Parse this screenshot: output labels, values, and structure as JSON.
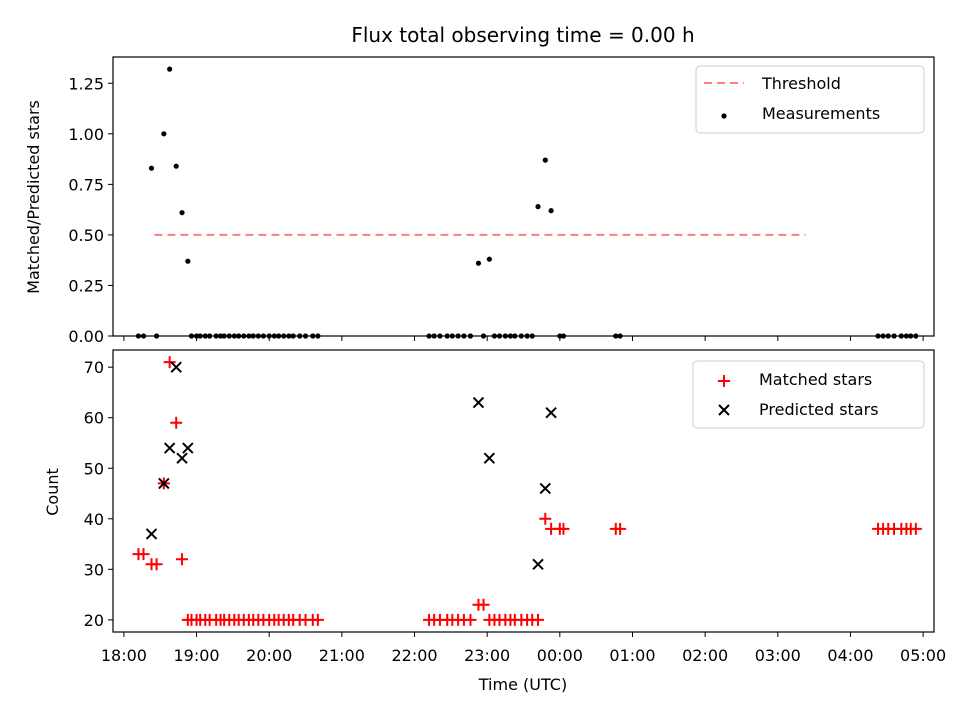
{
  "chart_data": {
    "title": "Flux total observing time = 0.00 h",
    "xlabel": "Time (UTC)",
    "x_ticks": [
      {
        "h": 18,
        "label": "18:00"
      },
      {
        "h": 19,
        "label": "19:00"
      },
      {
        "h": 20,
        "label": "20:00"
      },
      {
        "h": 21,
        "label": "21:00"
      },
      {
        "h": 22,
        "label": "22:00"
      },
      {
        "h": 23,
        "label": "23:00"
      },
      {
        "h": 24,
        "label": "00:00"
      },
      {
        "h": 25,
        "label": "01:00"
      },
      {
        "h": 26,
        "label": "02:00"
      },
      {
        "h": 27,
        "label": "03:00"
      },
      {
        "h": 28,
        "label": "04:00"
      },
      {
        "h": 29,
        "label": "05:00"
      }
    ],
    "xlim": [
      17.85,
      29.15
    ],
    "panels": [
      {
        "type": "scatter",
        "ylabel": "Matched/Predicted stars",
        "ylim": [
          0,
          1.38
        ],
        "y_ticks": [
          {
            "v": 0,
            "label": "0.00"
          },
          {
            "v": 0.25,
            "label": "0.25"
          },
          {
            "v": 0.5,
            "label": "0.50"
          },
          {
            "v": 0.75,
            "label": "0.75"
          },
          {
            "v": 1.0,
            "label": "1.00"
          },
          {
            "v": 1.25,
            "label": "1.25"
          }
        ],
        "legend": [
          "Threshold",
          "Measurements"
        ],
        "legend_position": "upper right",
        "threshold": {
          "name": "Threshold",
          "y": 0.5,
          "x_range": [
            18.42,
            27.38
          ],
          "color": "#ff7f7f"
        },
        "series": [
          {
            "name": "Measurements",
            "color": "#000000",
            "x": [
              18.2,
              18.27,
              18.38,
              18.45,
              18.55,
              18.63,
              18.72,
              18.8,
              18.88,
              18.93,
              19.0,
              19.05,
              19.12,
              19.18,
              19.27,
              19.33,
              19.38,
              19.45,
              19.52,
              19.58,
              19.65,
              19.72,
              19.78,
              19.85,
              19.92,
              20.0,
              20.07,
              20.13,
              20.2,
              20.27,
              20.33,
              20.42,
              20.5,
              20.6,
              20.67,
              22.2,
              22.27,
              22.35,
              22.45,
              22.52,
              22.6,
              22.68,
              22.77,
              22.88,
              22.95,
              23.03,
              23.1,
              23.17,
              23.25,
              23.32,
              23.38,
              23.47,
              23.55,
              23.62,
              23.7,
              23.8,
              23.88,
              24.0,
              24.05,
              24.77,
              24.83,
              28.38,
              28.45,
              28.52,
              28.6,
              28.7,
              28.77,
              28.83,
              28.9
            ],
            "y": [
              0,
              0,
              0.83,
              0,
              1.0,
              1.32,
              0.84,
              0.61,
              0.37,
              0,
              0,
              0,
              0,
              0,
              0,
              0,
              0,
              0,
              0,
              0,
              0,
              0,
              0,
              0,
              0,
              0,
              0,
              0,
              0,
              0,
              0,
              0,
              0,
              0,
              0,
              0,
              0,
              0,
              0,
              0,
              0,
              0,
              0,
              0.36,
              0,
              0.38,
              0,
              0,
              0,
              0,
              0,
              0,
              0,
              0,
              0.64,
              0.87,
              0.62,
              0,
              0,
              0,
              0,
              0,
              0,
              0,
              0,
              0,
              0,
              0,
              0
            ]
          }
        ]
      },
      {
        "type": "scatter",
        "ylabel": "Count",
        "ylim": [
          17.6,
          73.4
        ],
        "y_ticks": [
          {
            "v": 20,
            "label": "20"
          },
          {
            "v": 30,
            "label": "30"
          },
          {
            "v": 40,
            "label": "40"
          },
          {
            "v": 50,
            "label": "50"
          },
          {
            "v": 60,
            "label": "60"
          },
          {
            "v": 70,
            "label": "70"
          }
        ],
        "legend": [
          "Matched stars",
          "Predicted stars"
        ],
        "legend_position": "upper right",
        "series": [
          {
            "name": "Matched stars",
            "color": "#ff0000",
            "marker": "+",
            "x": [
              18.2,
              18.27,
              18.38,
              18.45,
              18.55,
              18.63,
              18.72,
              18.8,
              18.88,
              18.93,
              19.0,
              19.05,
              19.12,
              19.18,
              19.27,
              19.33,
              19.38,
              19.45,
              19.52,
              19.58,
              19.65,
              19.72,
              19.78,
              19.85,
              19.92,
              20.0,
              20.07,
              20.13,
              20.2,
              20.27,
              20.33,
              20.42,
              20.5,
              20.6,
              20.67,
              22.2,
              22.27,
              22.35,
              22.45,
              22.52,
              22.6,
              22.68,
              22.77,
              22.88,
              22.95,
              23.03,
              23.1,
              23.17,
              23.25,
              23.32,
              23.38,
              23.47,
              23.55,
              23.62,
              23.7,
              23.8,
              23.88,
              24.0,
              24.05,
              24.77,
              24.83,
              28.38,
              28.45,
              28.52,
              28.6,
              28.7,
              28.77,
              28.83,
              28.9
            ],
            "y": [
              33,
              33,
              31,
              31,
              47,
              71,
              59,
              32,
              20,
              20,
              20,
              20,
              20,
              20,
              20,
              20,
              20,
              20,
              20,
              20,
              20,
              20,
              20,
              20,
              20,
              20,
              20,
              20,
              20,
              20,
              20,
              20,
              20,
              20,
              20,
              20,
              20,
              20,
              20,
              20,
              20,
              20,
              20,
              23,
              23,
              20,
              20,
              20,
              20,
              20,
              20,
              20,
              20,
              20,
              20,
              40,
              38,
              38,
              38,
              38,
              38,
              38,
              38,
              38,
              38,
              38,
              38,
              38,
              38
            ]
          },
          {
            "name": "Predicted stars",
            "color": "#000000",
            "marker": "x",
            "x": [
              18.38,
              18.55,
              18.63,
              18.72,
              18.8,
              18.88,
              22.88,
              23.03,
              23.7,
              23.8,
              23.88
            ],
            "y": [
              37,
              47,
              54,
              70,
              52,
              54,
              63,
              52,
              31,
              46,
              61
            ]
          }
        ]
      }
    ]
  }
}
